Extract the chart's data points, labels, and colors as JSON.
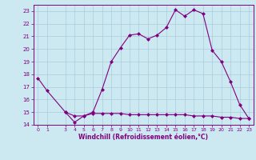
{
  "x": [
    0,
    1,
    3,
    4,
    5,
    6,
    7,
    8,
    9,
    10,
    11,
    12,
    13,
    14,
    15,
    16,
    17,
    18,
    19,
    20,
    21,
    22,
    23
  ],
  "y_main": [
    17.7,
    16.7,
    15.0,
    14.2,
    14.7,
    15.0,
    16.8,
    19.0,
    20.1,
    21.1,
    21.2,
    20.8,
    21.1,
    21.7,
    23.1,
    22.6,
    23.1,
    22.8,
    19.9,
    19.0,
    17.4,
    15.6,
    14.5
  ],
  "x_flat": [
    3,
    4,
    5,
    6,
    7,
    8,
    9,
    10,
    11,
    12,
    13,
    14,
    15,
    16,
    17,
    18,
    19,
    20,
    21,
    22,
    23
  ],
  "y_flat": [
    15.0,
    14.7,
    14.7,
    14.9,
    14.9,
    14.9,
    14.9,
    14.8,
    14.8,
    14.8,
    14.8,
    14.8,
    14.8,
    14.8,
    14.7,
    14.7,
    14.7,
    14.6,
    14.6,
    14.5,
    14.5
  ],
  "line_color": "#800080",
  "marker": "D",
  "marker_size": 2,
  "bg_color": "#cce8f0",
  "grid_color": "#aaccdd",
  "xlabel": "Windchill (Refroidissement éolien,°C)",
  "ylim": [
    14,
    23.5
  ],
  "xlim": [
    -0.5,
    23.5
  ],
  "yticks": [
    14,
    15,
    16,
    17,
    18,
    19,
    20,
    21,
    22,
    23
  ],
  "xticks": [
    0,
    1,
    3,
    4,
    5,
    6,
    7,
    8,
    9,
    10,
    11,
    12,
    13,
    14,
    15,
    16,
    17,
    18,
    19,
    20,
    21,
    22,
    23
  ],
  "xticklabels": [
    "0",
    "1",
    "3",
    "4",
    "5",
    "6",
    "7",
    "8",
    "9",
    "10",
    "11",
    "12",
    "13",
    "14",
    "15",
    "16",
    "17",
    "18",
    "19",
    "20",
    "21",
    "22",
    "23"
  ]
}
